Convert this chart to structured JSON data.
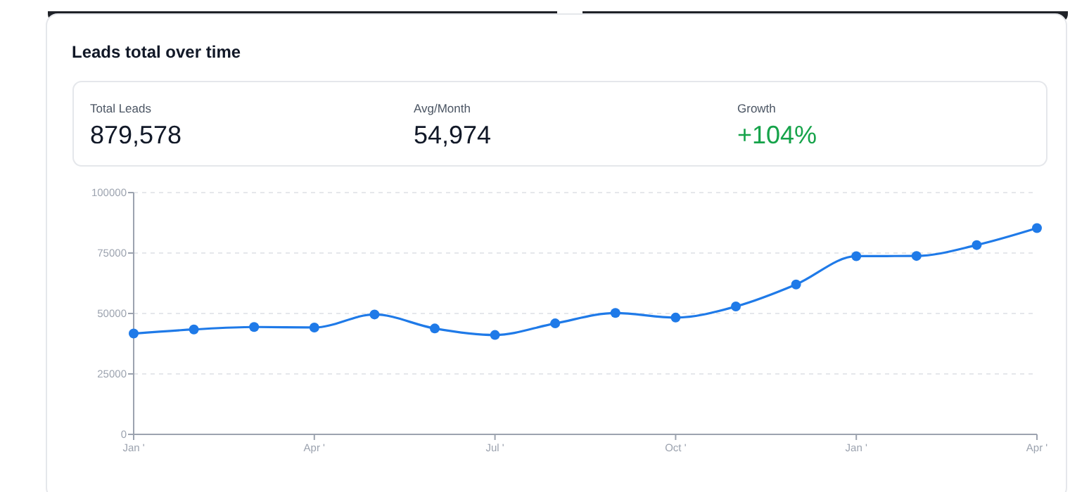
{
  "chart_data": [
    {
      "type": "other",
      "title": "Leads total over time",
      "annotations": [
        "Total Leads",
        "879,578",
        "Avg/Month",
        "54,974",
        "Growth",
        "+104%"
      ]
    },
    {
      "type": "line",
      "categories": [
        "Jan '",
        null,
        null,
        "Apr '",
        null,
        null,
        "Jul '",
        null,
        null,
        "Oct '",
        null,
        null,
        "Jan '",
        null,
        null,
        "Apr '"
      ],
      "series": [
        {
          "color": "#1f7ae8",
          "values": [
            41700,
            43400,
            44400,
            44200,
            49600,
            43800,
            41100,
            45900,
            50200,
            48300,
            52900,
            62000,
            73700,
            73800,
            78300,
            85300
          ]
        }
      ],
      "ylim": [
        0,
        100000
      ],
      "yticks": [
        0,
        25000,
        50000,
        75000,
        100000
      ],
      "grid": "y",
      "marker": "circle",
      "line_style": "solid"
    }
  ]
}
